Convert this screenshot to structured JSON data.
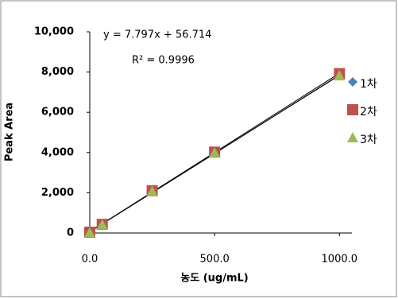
{
  "chart_data": {
    "type": "scatter",
    "x_label": "농도 (ug/mL)",
    "y_label": "Peak Area",
    "annotations": [
      "y = 7.797x  + 56.714",
      "R² = 0.9996"
    ],
    "xlim": [
      0,
      1050
    ],
    "ylim": [
      0,
      10000
    ],
    "xticks": [
      {
        "value": 0,
        "label": "0.0"
      },
      {
        "value": 500,
        "label": "500.0"
      },
      {
        "value": 1000,
        "label": "1000.0"
      }
    ],
    "yticks": [
      0,
      {
        "value": 2000,
        "label": "2,000"
      },
      {
        "value": 4000,
        "label": "4,000"
      },
      {
        "value": 6000,
        "label": "6,000"
      },
      {
        "value": 8000,
        "label": "8,000"
      },
      {
        "value": 10000,
        "label": "10,000"
      }
    ],
    "trendline": true,
    "series": [
      {
        "name": "1차",
        "color": "#4f81bd",
        "marker": "diamond",
        "x": [
          0,
          50,
          250,
          500,
          1000
        ],
        "values": [
          30,
          420,
          2080,
          4000,
          7800
        ]
      },
      {
        "name": "2차",
        "color": "#c0504d",
        "marker": "square",
        "x": [
          0,
          50,
          250,
          500,
          1000
        ],
        "values": [
          40,
          430,
          2100,
          4020,
          7920
        ]
      },
      {
        "name": "3차",
        "color": "#9bbb59",
        "marker": "triangle",
        "x": [
          0,
          50,
          250,
          500,
          1000
        ],
        "values": [
          20,
          410,
          2070,
          3990,
          7820
        ]
      }
    ]
  }
}
